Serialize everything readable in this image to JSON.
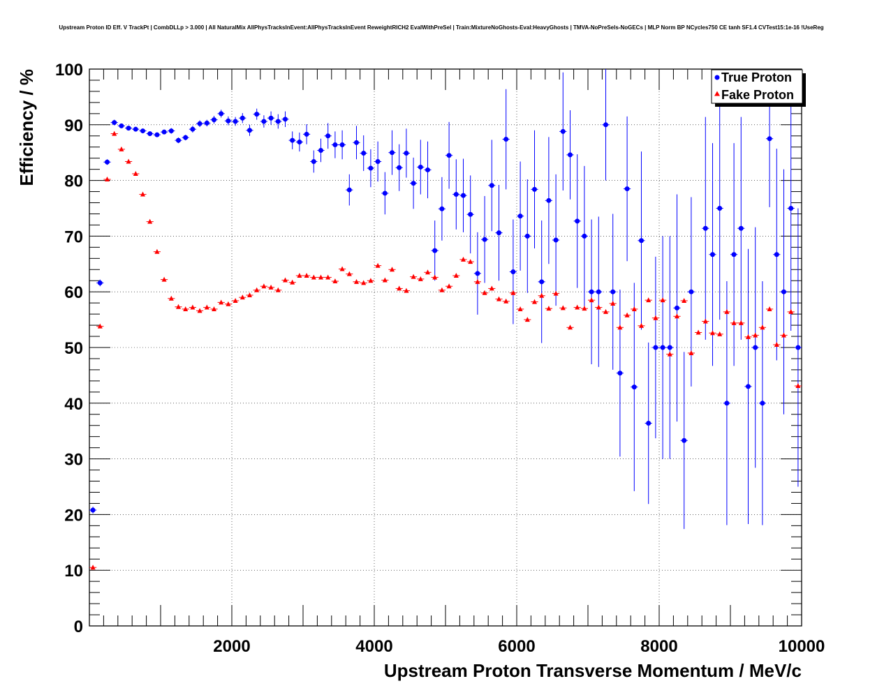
{
  "chart_data": {
    "type": "scatter",
    "title": "Upstream Proton ID Eff. V TrackPt | CombDLLp > 3.000 | All NaturalMix AllPhysTracksInEvent:AllPhysTracksInEvent ReweightRICH2 EvalWithPreSel | Train:MixtureNoGhosts-Eval:HeavyGhosts | TMVA-NoPreSels-NoGECs | MLP Norm BP NCycles750 CE tanh SF1.4 CVTest15:1e-16 !UseReg",
    "xlabel": "Upstream Proton Transverse Momentum / MeV/c",
    "ylabel": "Efficiency / %",
    "xlim": [
      0,
      10000
    ],
    "ylim": [
      0,
      100
    ],
    "xticks": [
      2000,
      4000,
      6000,
      8000,
      10000
    ],
    "xtick_labels": [
      "2000",
      "4000",
      "6000",
      "8000",
      "10000"
    ],
    "yticks": [
      0,
      10,
      20,
      30,
      40,
      50,
      60,
      70,
      80,
      90,
      100
    ],
    "ytick_labels": [
      "0",
      "10",
      "20",
      "30",
      "40",
      "50",
      "60",
      "70",
      "80",
      "90",
      "100"
    ],
    "grid": true,
    "legend_position": "top-right",
    "bin_width": 100,
    "series": [
      {
        "name": "True Proton",
        "color": "#0000ff",
        "marker": "circle",
        "x": [
          50,
          150,
          250,
          350,
          450,
          550,
          650,
          750,
          850,
          950,
          1050,
          1150,
          1250,
          1350,
          1450,
          1550,
          1650,
          1750,
          1850,
          1950,
          2050,
          2150,
          2250,
          2350,
          2450,
          2550,
          2650,
          2750,
          2850,
          2950,
          3050,
          3150,
          3250,
          3350,
          3450,
          3550,
          3650,
          3750,
          3850,
          3950,
          4050,
          4150,
          4250,
          4350,
          4450,
          4550,
          4650,
          4750,
          4850,
          4950,
          5050,
          5150,
          5250,
          5350,
          5450,
          5550,
          5650,
          5750,
          5850,
          5950,
          6050,
          6150,
          6250,
          6350,
          6450,
          6550,
          6650,
          6750,
          6850,
          6950,
          7050,
          7150,
          7250,
          7350,
          7450,
          7550,
          7650,
          7750,
          7850,
          7950,
          8050,
          8150,
          8250,
          8350,
          8450,
          8550,
          8650,
          8750,
          8850,
          8950,
          9050,
          9150,
          9250,
          9350,
          9450,
          9550,
          9650,
          9750,
          9850,
          9950
        ],
        "y": [
          20.8,
          61.6,
          83.3,
          90.4,
          89.8,
          89.4,
          89.2,
          88.9,
          88.4,
          88.2,
          88.7,
          88.9,
          87.2,
          87.7,
          89.2,
          90.2,
          90.3,
          90.9,
          92.0,
          90.7,
          90.6,
          91.2,
          89.0,
          91.9,
          90.6,
          91.2,
          90.6,
          91.0,
          87.2,
          86.9,
          88.3,
          83.4,
          85.4,
          88.0,
          86.4,
          86.4,
          78.3,
          86.8,
          84.9,
          82.2,
          83.4,
          77.7,
          85.0,
          82.3,
          84.9,
          79.5,
          82.4,
          81.9,
          67.4,
          74.9,
          84.5,
          77.5,
          77.3,
          73.9,
          63.3,
          69.4,
          79.1,
          70.6,
          87.4,
          63.6,
          73.6,
          70.0,
          78.4,
          61.8,
          76.4,
          69.3,
          88.8,
          84.6,
          72.7,
          70.0,
          60.0,
          60.0,
          90.0,
          60.0,
          45.4,
          78.5,
          42.9,
          69.2,
          36.4,
          50.0,
          50.0,
          50.0,
          57.1,
          33.3,
          60.0,
          null,
          71.4,
          66.7,
          75.0,
          40.0,
          66.7,
          71.4,
          43.0,
          50.0,
          40.0,
          87.5,
          66.7,
          60.0,
          75.0,
          50.0
        ],
        "err": [
          0.6,
          0.6,
          0.5,
          0.5,
          0.4,
          0.4,
          0.4,
          0.4,
          0.4,
          0.4,
          0.4,
          0.5,
          0.5,
          0.5,
          0.6,
          0.6,
          0.6,
          0.7,
          0.7,
          0.8,
          0.8,
          0.9,
          1.0,
          1.0,
          1.1,
          1.2,
          1.3,
          1.4,
          1.6,
          1.7,
          1.8,
          2.0,
          2.1,
          2.3,
          2.4,
          2.6,
          2.8,
          3.0,
          3.2,
          3.4,
          3.6,
          3.8,
          4.0,
          4.2,
          4.4,
          4.6,
          4.9,
          5.1,
          5.4,
          5.7,
          6.0,
          6.3,
          6.6,
          7.0,
          7.4,
          7.8,
          8.2,
          8.6,
          9.0,
          9.4,
          9.8,
          10.2,
          10.6,
          11.0,
          11.4,
          11.8,
          10.6,
          8.0,
          12.0,
          12.6,
          13.0,
          13.5,
          10.0,
          14.0,
          15.0,
          13.0,
          18.7,
          16.0,
          14.5,
          16.3,
          20.0,
          20.0,
          20.4,
          15.9,
          17.0,
          0,
          20.0,
          20.0,
          20.0,
          21.9,
          20.0,
          20.0,
          24.7,
          21.6,
          21.9,
          12.3,
          19.0,
          22.0,
          22.0,
          25.0
        ]
      },
      {
        "name": "Fake Proton",
        "color": "#ff0000",
        "marker": "triangle",
        "x": [
          50,
          150,
          250,
          350,
          450,
          550,
          650,
          750,
          850,
          950,
          1050,
          1150,
          1250,
          1350,
          1450,
          1550,
          1650,
          1750,
          1850,
          1950,
          2050,
          2150,
          2250,
          2350,
          2450,
          2550,
          2650,
          2750,
          2850,
          2950,
          3050,
          3150,
          3250,
          3350,
          3450,
          3550,
          3650,
          3750,
          3850,
          3950,
          4050,
          4150,
          4250,
          4350,
          4450,
          4550,
          4650,
          4750,
          4850,
          4950,
          5050,
          5150,
          5250,
          5350,
          5450,
          5550,
          5650,
          5750,
          5850,
          5950,
          6050,
          6150,
          6250,
          6350,
          6450,
          6550,
          6650,
          6750,
          6850,
          6950,
          7050,
          7150,
          7250,
          7350,
          7450,
          7550,
          7650,
          7750,
          7850,
          7950,
          8050,
          8150,
          8250,
          8350,
          8450,
          8550,
          8650,
          8750,
          8850,
          8950,
          9050,
          9150,
          9250,
          9350,
          9450,
          9550,
          9650,
          9750,
          9850,
          9950
        ],
        "y": [
          10.5,
          53.8,
          80.2,
          88.4,
          85.6,
          83.4,
          81.2,
          77.5,
          72.6,
          67.2,
          62.2,
          58.8,
          57.3,
          56.9,
          57.2,
          56.6,
          57.2,
          56.9,
          58.1,
          57.8,
          58.4,
          59.0,
          59.4,
          60.3,
          61.0,
          60.8,
          60.3,
          62.1,
          61.7,
          62.9,
          62.9,
          62.6,
          62.6,
          62.6,
          61.9,
          64.1,
          63.2,
          61.8,
          61.6,
          62.0,
          64.7,
          62.1,
          64.0,
          60.6,
          60.2,
          62.7,
          62.3,
          63.5,
          62.6,
          60.3,
          61.0,
          62.9,
          65.8,
          65.4,
          61.8,
          59.8,
          60.6,
          58.7,
          58.3,
          59.8,
          56.9,
          55.0,
          58.2,
          59.3,
          57.0,
          59.7,
          57.1,
          53.6,
          57.2,
          57.0,
          58.5,
          57.2,
          56.4,
          57.9,
          53.6,
          55.8,
          56.9,
          53.9,
          58.5,
          55.3,
          58.5,
          48.8,
          55.6,
          58.4,
          49.0,
          52.7,
          54.7,
          52.6,
          52.4,
          56.4,
          54.4,
          54.4,
          51.9,
          52.2,
          53.6,
          56.9,
          50.5,
          52.2,
          56.4,
          43.1
        ]
      }
    ]
  }
}
